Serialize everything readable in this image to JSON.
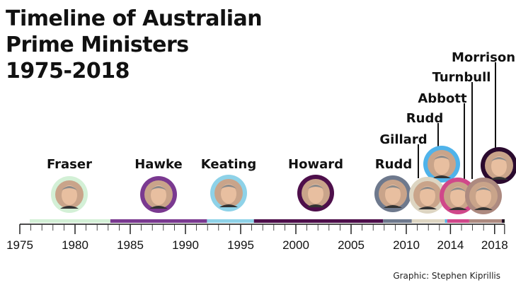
{
  "title_lines": [
    "Timeline of Australian",
    "Prime Ministers",
    "1975-2018"
  ],
  "credit": "Graphic: Stephen Kiprillis",
  "axis": {
    "start": 1975,
    "end": 2019,
    "ticks": [
      1975,
      1980,
      1985,
      1990,
      1995,
      2000,
      2005,
      2010,
      2014,
      2018
    ]
  },
  "ministers": [
    {
      "name": "Fraser",
      "start": 1975.9,
      "end": 1983.2,
      "color": "#d3f0d6"
    },
    {
      "name": "Hawke",
      "start": 1983.2,
      "end": 1991.95,
      "color": "#7a3990"
    },
    {
      "name": "Keating",
      "start": 1991.95,
      "end": 1996.2,
      "color": "#8ed2e8"
    },
    {
      "name": "Howard",
      "start": 1996.2,
      "end": 2007.9,
      "color": "#4e0f4b"
    },
    {
      "name": "Rudd",
      "start": 2007.9,
      "end": 2010.5,
      "color": "#6e798d"
    },
    {
      "name": "Gillard",
      "start": 2010.5,
      "end": 2013.5,
      "color": "#ddd5c2"
    },
    {
      "name": "Rudd",
      "start": 2013.5,
      "end": 2013.7,
      "color": "#4fb3ea"
    },
    {
      "name": "Abbott",
      "start": 2013.7,
      "end": 2015.7,
      "color": "#d0488a"
    },
    {
      "name": "Turnbull",
      "start": 2015.7,
      "end": 2018.65,
      "color": "#ad8a80"
    },
    {
      "name": "Morrison",
      "start": 2018.65,
      "end": 2018.9,
      "color": "#2a0a2e"
    }
  ]
}
